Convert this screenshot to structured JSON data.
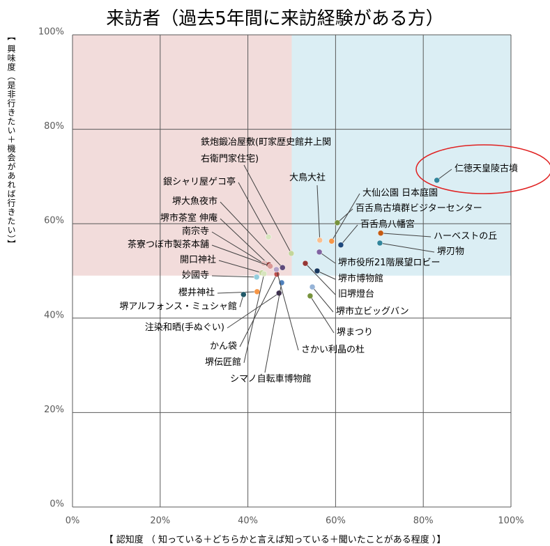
{
  "chart_data": {
    "type": "scatter",
    "title": "来訪者（過去5年間に来訪経験がある方）",
    "x_label": "【 認知度 （ 知っている＋どちらかと言えば知っている＋聞いたことがある程度 ）】",
    "y_label": "【 興味度（是非行きたい＋機会があれば行きたい）】",
    "xlim": [
      0,
      100
    ],
    "ylim": [
      0,
      100
    ],
    "xticks": [
      {
        "value": 0,
        "label": "0%"
      },
      {
        "value": 20,
        "label": "20%"
      },
      {
        "value": 40,
        "label": "40%"
      },
      {
        "value": 60,
        "label": "60%"
      },
      {
        "value": 80,
        "label": "80%"
      },
      {
        "value": 100,
        "label": "100%"
      }
    ],
    "yticks": [
      {
        "value": 0,
        "label": "0%"
      },
      {
        "value": 20,
        "label": "20%"
      },
      {
        "value": 40,
        "label": "40%"
      },
      {
        "value": 60,
        "label": "60%"
      },
      {
        "value": 80,
        "label": "80%"
      },
      {
        "value": 100,
        "label": "100%"
      }
    ],
    "grid": true,
    "quadrants": {
      "x": 50,
      "y": 49,
      "colors": [
        "#f2dcdb",
        "#dbeef4"
      ]
    },
    "points": [
      {
        "name": "仁徳天皇陵古墳",
        "x": 83.1,
        "y": 69.2,
        "color": "#31859c"
      },
      {
        "name": "大鳥大社",
        "x": 56.4,
        "y": 56.5,
        "color": "#fac090"
      },
      {
        "name": "大仙公園 日本庭園",
        "x": 59.1,
        "y": 56.3,
        "color": "#f79646"
      },
      {
        "name": "百舌鳥古墳群ビジターセンター",
        "x": 60.4,
        "y": 60.2,
        "color": "#76923c"
      },
      {
        "name": "百舌鳥八幡宮",
        "x": 61.2,
        "y": 55.5,
        "color": "#1f497d"
      },
      {
        "name": "ハーベストの丘",
        "x": 70.3,
        "y": 58.0,
        "color": "#c55a11"
      },
      {
        "name": "堺刃物",
        "x": 70.1,
        "y": 55.9,
        "color": "#31859c"
      },
      {
        "name": "堺市役所21階展望ロビー",
        "x": 56.3,
        "y": 54.0,
        "color": "#8064a2"
      },
      {
        "name": "堺市博物館",
        "x": 55.8,
        "y": 50.0,
        "color": "#17375e"
      },
      {
        "name": "旧堺燈台",
        "x": 53.1,
        "y": 51.6,
        "color": "#953735"
      },
      {
        "name": "堺市立ビッグバン",
        "x": 54.7,
        "y": 46.6,
        "color": "#95b3d7"
      },
      {
        "name": "堺まつり",
        "x": 54.2,
        "y": 44.7,
        "color": "#77933c"
      },
      {
        "name": "鉄炮鍛冶屋敷(町家歴史館井上関右衛門家住宅)",
        "x": 49.9,
        "y": 53.7,
        "color": "#c3d69b"
      },
      {
        "name": "銀シャリ屋ゲコ亭",
        "x": 44.7,
        "y": 57.2,
        "color": "#d7e4bd"
      },
      {
        "name": "堺大魚夜市",
        "x": 47.9,
        "y": 50.7,
        "color": "#604a7b"
      },
      {
        "name": "堺市茶室 伸庵",
        "x": 44.8,
        "y": 51.3,
        "color": "#943634"
      },
      {
        "name": "南宗寺",
        "x": 43.6,
        "y": 51.6,
        "color": "#e6b9b8"
      },
      {
        "name": "茶寮つぼ市製茶本舗",
        "x": 45.1,
        "y": 51.0,
        "color": "#d99694"
      },
      {
        "name": "開口神社",
        "x": 43.2,
        "y": 49.6,
        "color": "#c3d69b"
      },
      {
        "name": "妙國寺",
        "x": 42.0,
        "y": 48.7,
        "color": "#93cddd"
      },
      {
        "name": "櫻井神社",
        "x": 42.1,
        "y": 45.6,
        "color": "#f79646"
      },
      {
        "name": "堺アルフォンス・ミュシャ館",
        "x": 39.0,
        "y": 45.0,
        "color": "#215968"
      },
      {
        "name": "注染和晒(手ぬぐい)",
        "x": 47.1,
        "y": 45.3,
        "color": "#3f3151"
      },
      {
        "name": "かん袋",
        "x": 46.6,
        "y": 49.3,
        "color": "#c0504d"
      },
      {
        "name": "堺伝匠館",
        "x": 43.7,
        "y": 49.4,
        "color": "#d7e4bd"
      },
      {
        "name": "シマノ自転車博物館",
        "x": 47.7,
        "y": 47.5,
        "color": "#4f81bd"
      },
      {
        "name": "さかい利晶の杜",
        "x": 46.5,
        "y": 50.3,
        "color": "#b3a2c7"
      }
    ]
  }
}
